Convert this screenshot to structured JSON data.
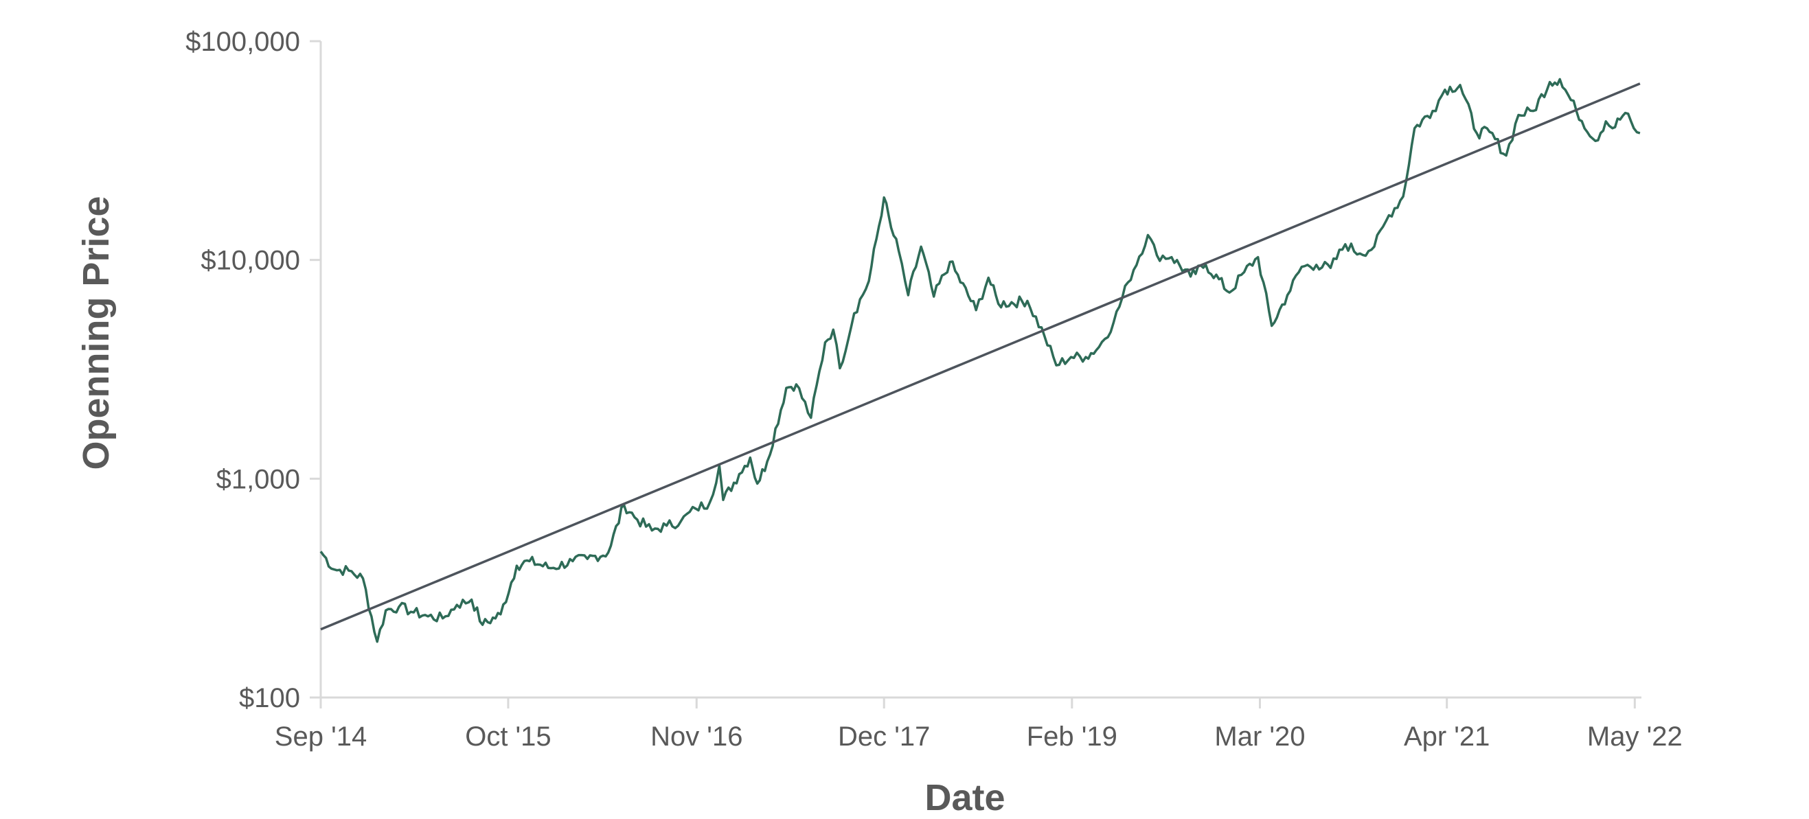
{
  "chart_data": {
    "type": "line",
    "title": "",
    "xlabel": "Date",
    "ylabel": "Openning Price",
    "y_scale": "log",
    "ylim": [
      100,
      100000
    ],
    "xlim": [
      "2014-09-17",
      "2022-05-01"
    ],
    "grid": false,
    "legend": "none",
    "y_ticks": [
      {
        "value": 100,
        "label": "$100"
      },
      {
        "value": 1000,
        "label": "$1,000"
      },
      {
        "value": 10000,
        "label": "$10,000"
      },
      {
        "value": 100000,
        "label": "$100,000"
      }
    ],
    "x_ticks": [
      {
        "date": "2014-09-17",
        "label": "Sep '14"
      },
      {
        "date": "2015-10-17",
        "label": "Oct '15"
      },
      {
        "date": "2016-11-17",
        "label": "Nov '16"
      },
      {
        "date": "2017-12-17",
        "label": "Dec '17"
      },
      {
        "date": "2019-01-17",
        "label": "Feb '19"
      },
      {
        "date": "2020-02-17",
        "label": "Mar '20"
      },
      {
        "date": "2021-03-17",
        "label": "Apr '21"
      },
      {
        "date": "2022-04-17",
        "label": "May '22"
      }
    ],
    "series": [
      {
        "color": "#2e6b57",
        "points": [
          [
            "2014-09-17",
            465
          ],
          [
            "2014-10-15",
            385
          ],
          [
            "2014-11-15",
            380
          ],
          [
            "2014-12-15",
            350
          ],
          [
            "2015-01-14",
            180
          ],
          [
            "2015-02-01",
            250
          ],
          [
            "2015-03-01",
            260
          ],
          [
            "2015-04-01",
            245
          ],
          [
            "2015-05-01",
            235
          ],
          [
            "2015-06-01",
            230
          ],
          [
            "2015-07-01",
            265
          ],
          [
            "2015-08-01",
            280
          ],
          [
            "2015-08-24",
            215
          ],
          [
            "2015-10-01",
            240
          ],
          [
            "2015-11-04",
            400
          ],
          [
            "2015-12-01",
            420
          ],
          [
            "2016-01-15",
            390
          ],
          [
            "2016-03-01",
            420
          ],
          [
            "2016-04-01",
            430
          ],
          [
            "2016-05-15",
            460
          ],
          [
            "2016-06-17",
            760
          ],
          [
            "2016-07-15",
            650
          ],
          [
            "2016-08-15",
            580
          ],
          [
            "2016-09-15",
            610
          ],
          [
            "2016-10-15",
            640
          ],
          [
            "2016-11-15",
            730
          ],
          [
            "2016-12-15",
            780
          ],
          [
            "2017-01-04",
            1150
          ],
          [
            "2017-01-12",
            800
          ],
          [
            "2017-02-15",
            1050
          ],
          [
            "2017-03-10",
            1250
          ],
          [
            "2017-03-25",
            950
          ],
          [
            "2017-04-15",
            1200
          ],
          [
            "2017-05-25",
            2600
          ],
          [
            "2017-06-15",
            2700
          ],
          [
            "2017-07-16",
            1900
          ],
          [
            "2017-08-15",
            4200
          ],
          [
            "2017-09-01",
            4800
          ],
          [
            "2017-09-15",
            3200
          ],
          [
            "2017-10-15",
            5700
          ],
          [
            "2017-11-15",
            8000
          ],
          [
            "2017-12-17",
            19300
          ],
          [
            "2018-01-01",
            14000
          ],
          [
            "2018-01-17",
            11000
          ],
          [
            "2018-02-06",
            6900
          ],
          [
            "2018-03-05",
            11500
          ],
          [
            "2018-04-01",
            6800
          ],
          [
            "2018-05-05",
            9800
          ],
          [
            "2018-06-29",
            5900
          ],
          [
            "2018-07-25",
            8300
          ],
          [
            "2018-08-15",
            6300
          ],
          [
            "2018-10-15",
            6500
          ],
          [
            "2018-11-20",
            4500
          ],
          [
            "2018-12-15",
            3300
          ],
          [
            "2019-01-15",
            3600
          ],
          [
            "2019-02-15",
            3600
          ],
          [
            "2019-03-15",
            4000
          ],
          [
            "2019-04-15",
            5200
          ],
          [
            "2019-05-15",
            7900
          ],
          [
            "2019-06-26",
            13000
          ],
          [
            "2019-07-15",
            10500
          ],
          [
            "2019-08-15",
            10300
          ],
          [
            "2019-09-24",
            8400
          ],
          [
            "2019-10-26",
            9500
          ],
          [
            "2019-12-15",
            7100
          ],
          [
            "2020-01-15",
            8800
          ],
          [
            "2020-02-13",
            10300
          ],
          [
            "2020-03-13",
            5000
          ],
          [
            "2020-04-15",
            6900
          ],
          [
            "2020-05-15",
            9300
          ],
          [
            "2020-06-15",
            9500
          ],
          [
            "2020-07-15",
            9200
          ],
          [
            "2020-08-15",
            11800
          ],
          [
            "2020-09-15",
            10700
          ],
          [
            "2020-10-15",
            11500
          ],
          [
            "2020-11-15",
            16000
          ],
          [
            "2020-12-15",
            19500
          ],
          [
            "2021-01-08",
            40000
          ],
          [
            "2021-02-15",
            48000
          ],
          [
            "2021-03-13",
            60000
          ],
          [
            "2021-04-14",
            63000
          ],
          [
            "2021-05-19",
            38000
          ],
          [
            "2021-06-15",
            38500
          ],
          [
            "2021-07-20",
            30000
          ],
          [
            "2021-08-15",
            46000
          ],
          [
            "2021-09-15",
            48000
          ],
          [
            "2021-10-20",
            65000
          ],
          [
            "2021-11-10",
            67000
          ],
          [
            "2021-12-15",
            48000
          ],
          [
            "2022-01-24",
            35000
          ],
          [
            "2022-02-15",
            43000
          ],
          [
            "2022-03-01",
            40000
          ],
          [
            "2022-03-28",
            47000
          ],
          [
            "2022-04-15",
            40000
          ],
          [
            "2022-04-28",
            38000
          ]
        ]
      },
      {
        "type": "trendline",
        "color": "#4d545c",
        "points": [
          [
            "2014-09-17",
            205
          ],
          [
            "2022-04-28",
            64000
          ]
        ]
      }
    ]
  }
}
